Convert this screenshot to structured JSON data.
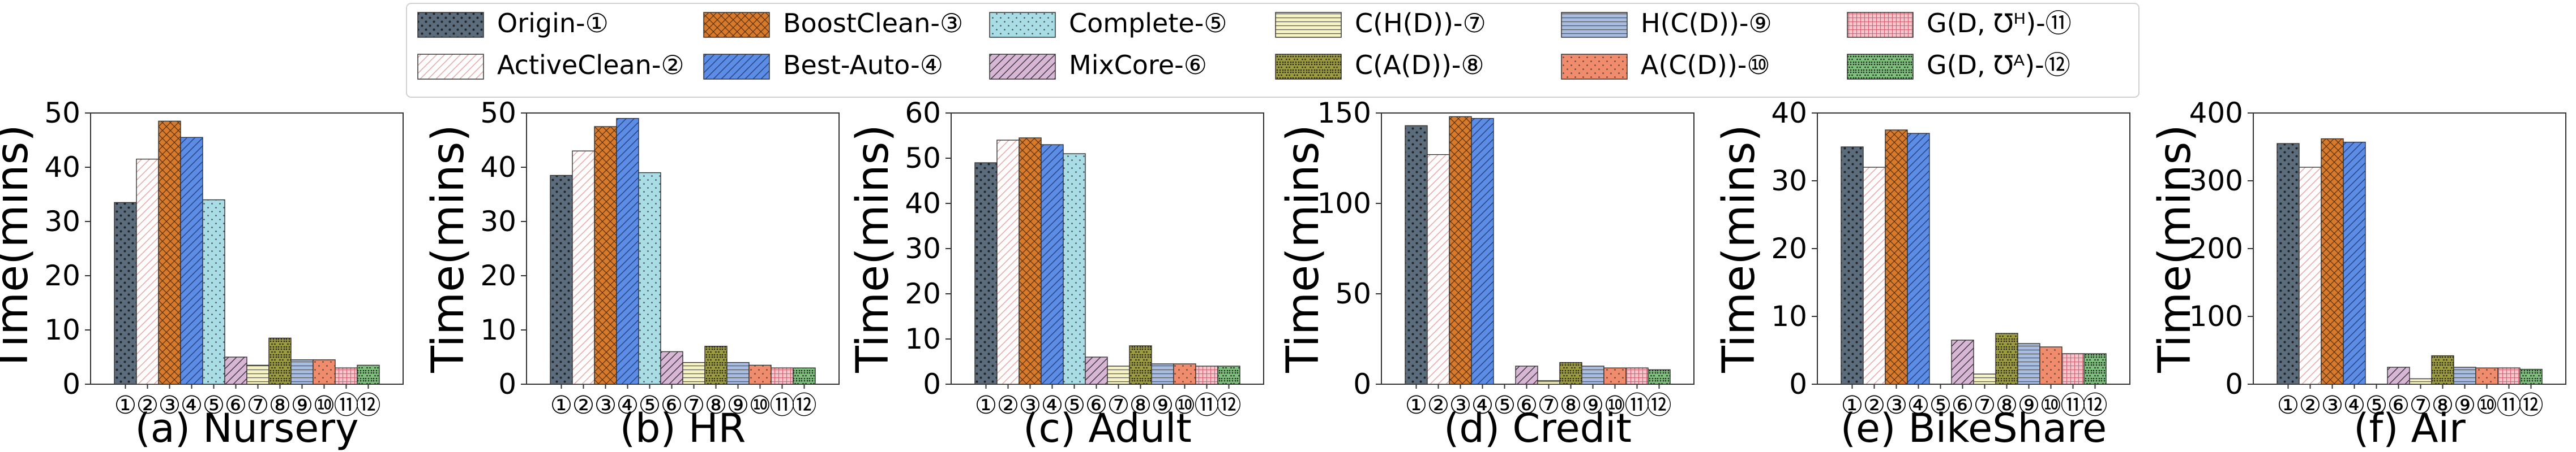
{
  "legend": {
    "entries": [
      {
        "label": "Origin-①",
        "color": "#5b6c7d",
        "pattern": "dots"
      },
      {
        "label": "ActiveClean-②",
        "color": "#ffffff",
        "pattern": "diag",
        "stroke": "#e8a0a0"
      },
      {
        "label": "BoostClean-③",
        "color": "#d97a2b",
        "pattern": "cross"
      },
      {
        "label": "Best-Auto-④",
        "color": "#5b8de8",
        "pattern": "diag-dark"
      },
      {
        "label": "Complete-⑤",
        "color": "#a9dde6",
        "pattern": "dots-small"
      },
      {
        "label": "MixCore-⑥",
        "color": "#d8b6d6",
        "pattern": "diag"
      },
      {
        "label": "C(H(D))-⑦",
        "color": "#f6f3c4",
        "pattern": "hlines"
      },
      {
        "label": "C(A(D))-⑧",
        "color": "#9b9a3c",
        "pattern": "dots-dense"
      },
      {
        "label": "H(C(D))-⑨",
        "color": "#a9bde2",
        "pattern": "hlines"
      },
      {
        "label": "A(C(D))-⑩",
        "color": "#f08c6c",
        "pattern": "dots-small"
      },
      {
        "label": "G(D, ℧ᴴ)-⑪",
        "color": "#f6c4cc",
        "pattern": "grid"
      },
      {
        "label": "G(D, ℧ᴬ)-⑫",
        "color": "#7cc07c",
        "pattern": "dots-dense"
      }
    ]
  },
  "chart_data": [
    {
      "type": "bar",
      "title": "(a) Nursery",
      "ylabel": "Time(mins)",
      "ylim": [
        0,
        50
      ],
      "yticks": [
        "0",
        "10",
        "20",
        "30",
        "40",
        "50"
      ],
      "categories": [
        "①",
        "②",
        "③",
        "④",
        "⑤",
        "⑥",
        "⑦",
        "⑧",
        "⑨",
        "⑩",
        "⑪",
        "⑫"
      ],
      "values": [
        33.5,
        41.5,
        48.5,
        45.5,
        34,
        5,
        3.5,
        8.5,
        4.5,
        4.5,
        3,
        3.5
      ]
    },
    {
      "type": "bar",
      "title": "(b) HR",
      "ylabel": "Time(mins)",
      "ylim": [
        0,
        50
      ],
      "yticks": [
        "0",
        "10",
        "20",
        "30",
        "40",
        "50"
      ],
      "categories": [
        "①",
        "②",
        "③",
        "④",
        "⑤",
        "⑥",
        "⑦",
        "⑧",
        "⑨",
        "⑩",
        "⑪",
        "⑫"
      ],
      "values": [
        38.5,
        43,
        47.5,
        49,
        39,
        6,
        4,
        7,
        4,
        3.5,
        3,
        3
      ]
    },
    {
      "type": "bar",
      "title": "(c) Adult",
      "ylabel": "Time(mins)",
      "ylim": [
        0,
        60
      ],
      "yticks": [
        "0",
        "10",
        "20",
        "30",
        "40",
        "50",
        "60"
      ],
      "categories": [
        "①",
        "②",
        "③",
        "④",
        "⑤",
        "⑥",
        "⑦",
        "⑧",
        "⑨",
        "⑩",
        "⑪",
        "⑫"
      ],
      "values": [
        49,
        54,
        54.5,
        53,
        51,
        6,
        4,
        8.5,
        4.5,
        4.5,
        4,
        4
      ]
    },
    {
      "type": "bar",
      "title": "(d) Credit",
      "ylabel": "Time(mins)",
      "ylim": [
        0,
        150
      ],
      "yticks": [
        "0",
        "50",
        "100",
        "150"
      ],
      "categories": [
        "①",
        "②",
        "③",
        "④",
        "⑤",
        "⑥",
        "⑦",
        "⑧",
        "⑨",
        "⑩",
        "⑪",
        "⑫"
      ],
      "values": [
        143,
        127,
        148,
        147,
        0,
        10,
        2,
        12,
        10,
        9,
        9,
        8
      ]
    },
    {
      "type": "bar",
      "title": "(e) BikeShare",
      "ylabel": "Time(mins)",
      "ylim": [
        0,
        40
      ],
      "yticks": [
        "0",
        "10",
        "20",
        "30",
        "40"
      ],
      "categories": [
        "①",
        "②",
        "③",
        "④",
        "⑤",
        "⑥",
        "⑦",
        "⑧",
        "⑨",
        "⑩",
        "⑪",
        "⑫"
      ],
      "values": [
        35,
        32,
        37.5,
        37,
        0,
        6.5,
        1.5,
        7.5,
        6,
        5.5,
        4.5,
        4.5
      ]
    },
    {
      "type": "bar",
      "title": "(f) Air",
      "ylabel": "Time(mins)",
      "ylim": [
        0,
        400
      ],
      "yticks": [
        "0",
        "100",
        "200",
        "300",
        "400"
      ],
      "categories": [
        "①",
        "②",
        "③",
        "④",
        "⑤",
        "⑥",
        "⑦",
        "⑧",
        "⑨",
        "⑩",
        "⑪",
        "⑫"
      ],
      "values": [
        355,
        320,
        362,
        357,
        0,
        25,
        8,
        42,
        25,
        24,
        24,
        22
      ]
    }
  ]
}
